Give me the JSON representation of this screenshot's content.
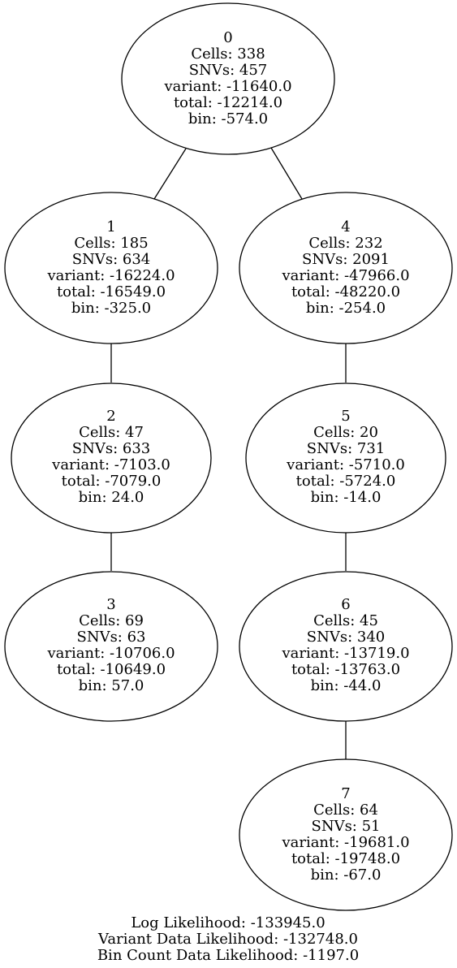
{
  "nodes": [
    {
      "id": "0",
      "lines": [
        "0",
        "Cells: 338",
        "SNVs: 457",
        "variant: -11640.0",
        "total: -12214.0",
        "bin: -574.0"
      ]
    },
    {
      "id": "1",
      "lines": [
        "1",
        "Cells: 185",
        "SNVs: 634",
        "variant: -16224.0",
        "total: -16549.0",
        "bin: -325.0"
      ]
    },
    {
      "id": "4",
      "lines": [
        "4",
        "Cells: 232",
        "SNVs: 2091",
        "variant: -47966.0",
        "total: -48220.0",
        "bin: -254.0"
      ]
    },
    {
      "id": "2",
      "lines": [
        "2",
        "Cells: 47",
        "SNVs: 633",
        "variant: -7103.0",
        "total: -7079.0",
        "bin: 24.0"
      ]
    },
    {
      "id": "5",
      "lines": [
        "5",
        "Cells: 20",
        "SNVs: 731",
        "variant: -5710.0",
        "total: -5724.0",
        "bin: -14.0"
      ]
    },
    {
      "id": "3",
      "lines": [
        "3",
        "Cells: 69",
        "SNVs: 63",
        "variant: -10706.0",
        "total: -10649.0",
        "bin: 57.0"
      ]
    },
    {
      "id": "6",
      "lines": [
        "6",
        "Cells: 45",
        "SNVs: 340",
        "variant: -13719.0",
        "total: -13763.0",
        "bin: -44.0"
      ]
    },
    {
      "id": "7",
      "lines": [
        "7",
        "Cells: 64",
        "SNVs: 51",
        "variant: -19681.0",
        "total: -19748.0",
        "bin: -67.0"
      ]
    }
  ],
  "edges": [
    {
      "from": "0",
      "to": "1"
    },
    {
      "from": "0",
      "to": "4"
    },
    {
      "from": "1",
      "to": "2"
    },
    {
      "from": "2",
      "to": "3"
    },
    {
      "from": "4",
      "to": "5"
    },
    {
      "from": "5",
      "to": "6"
    },
    {
      "from": "6",
      "to": "7"
    }
  ],
  "footer": [
    "Log Likelihood: -133945.0",
    "Variant Data Likelihood: -132748.0",
    "Bin Count Data Likelihood: -1197.0"
  ]
}
